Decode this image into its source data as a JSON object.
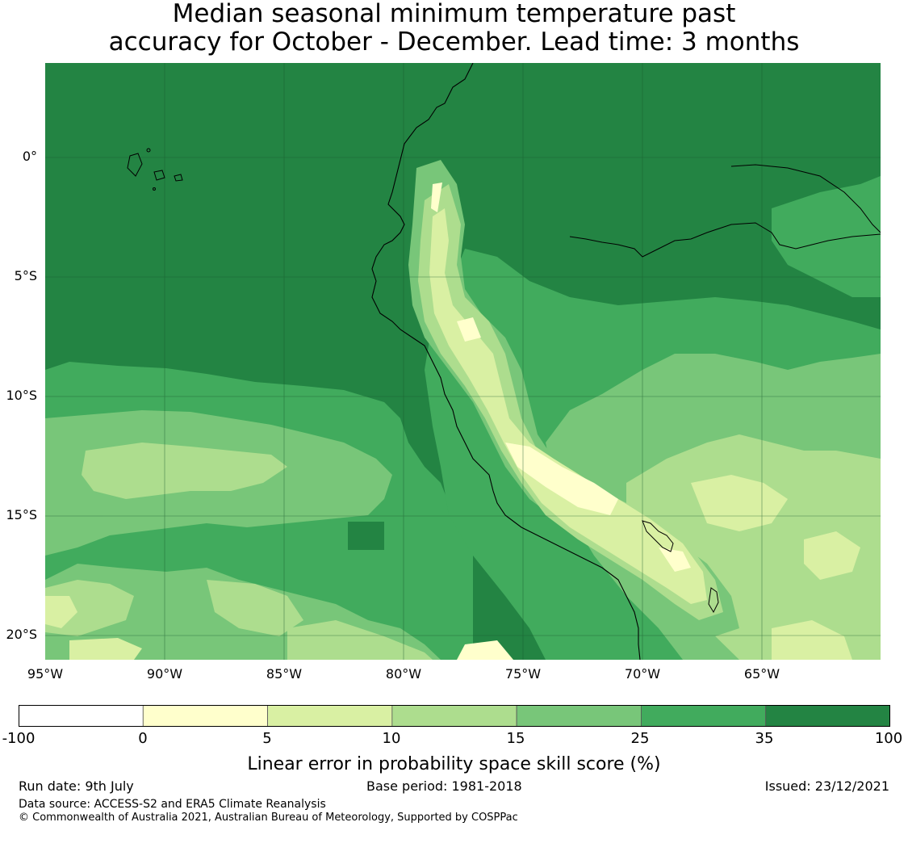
{
  "title": {
    "line1": "Median seasonal minimum temperature past",
    "line2": "accuracy for October - December. Lead time: 3 months"
  },
  "map": {
    "lat_ticks": [
      "0°",
      "5°S",
      "10°S",
      "15°S",
      "20°S"
    ],
    "lon_ticks": [
      "95°W",
      "90°W",
      "85°W",
      "80°W",
      "75°W",
      "70°W",
      "65°W"
    ],
    "extent": {
      "lon": [
        -95,
        -60
      ],
      "lat": [
        4,
        -21
      ]
    },
    "dominant_class": "35 to 100",
    "palette_note": "darker green = higher skill; pale yellow = lowest skill (0 to 5)"
  },
  "colorbar": {
    "ticks": [
      "-100",
      "0",
      "5",
      "10",
      "15",
      "25",
      "35",
      "100"
    ],
    "colors": [
      "#ffffff",
      "#ffffcc",
      "#d9f0a3",
      "#addd8e",
      "#78c679",
      "#41ab5d",
      "#238443"
    ],
    "label": "Linear error in probability space skill score (%)"
  },
  "footer": {
    "run_date": "Run date: 9th July",
    "base_period": "Base period: 1981-2018",
    "issued": "Issued: 23/12/2021",
    "data_source": "Data source: ACCESS-S2 and ERA5 Climate Reanalysis",
    "copyright": "© Commonwealth of Australia 2021, Australian Bureau of Meteorology, Supported by COSPPac"
  }
}
